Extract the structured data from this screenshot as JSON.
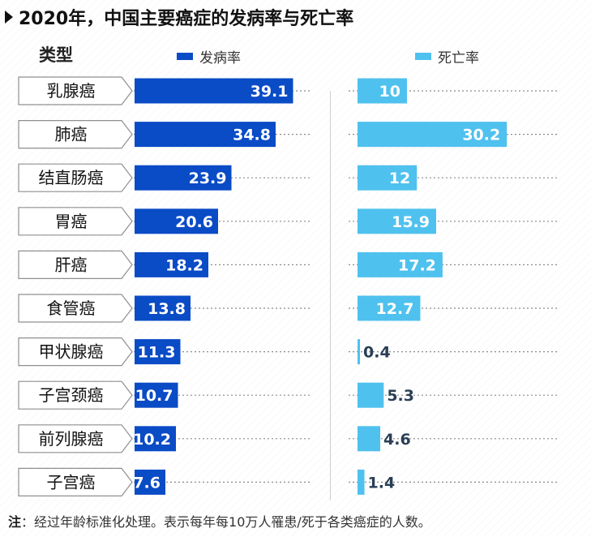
{
  "chart_data": {
    "type": "bar",
    "title": "2020年，中国主要癌症的发病率与死亡率",
    "category_header": "类型",
    "categories": [
      "乳腺癌",
      "肺癌",
      "结直肠癌",
      "胃癌",
      "肝癌",
      "食管癌",
      "甲状腺癌",
      "子宫颈癌",
      "前列腺癌",
      "子宫癌"
    ],
    "series": [
      {
        "name": "发病率",
        "color": "#0a4bc6",
        "values": [
          39.1,
          34.8,
          23.9,
          20.6,
          18.2,
          13.8,
          11.3,
          10.7,
          10.2,
          7.6
        ],
        "labels": [
          "39.1",
          "34.8",
          "23.9",
          "20.6",
          "18.2",
          "13.8",
          "11.3",
          "10.7",
          "10.2",
          "7.6"
        ]
      },
      {
        "name": "死亡率",
        "color": "#4fc1ee",
        "values": [
          10,
          30.2,
          12,
          15.9,
          17.2,
          12.7,
          0.4,
          5.3,
          4.6,
          1.4
        ],
        "labels": [
          "10",
          "30.2",
          "12",
          "15.9",
          "17.2",
          "12.7",
          "0.4",
          "5.3",
          "4.6",
          "1.4"
        ]
      }
    ],
    "xlim": [
      0,
      40
    ],
    "grid": "dotted guide lines per row",
    "legend_position": "top"
  },
  "note": {
    "label": "注",
    "text": "：经过年龄标准化处理。表示每年每10万人罹患/死于各类癌症的人数。"
  }
}
